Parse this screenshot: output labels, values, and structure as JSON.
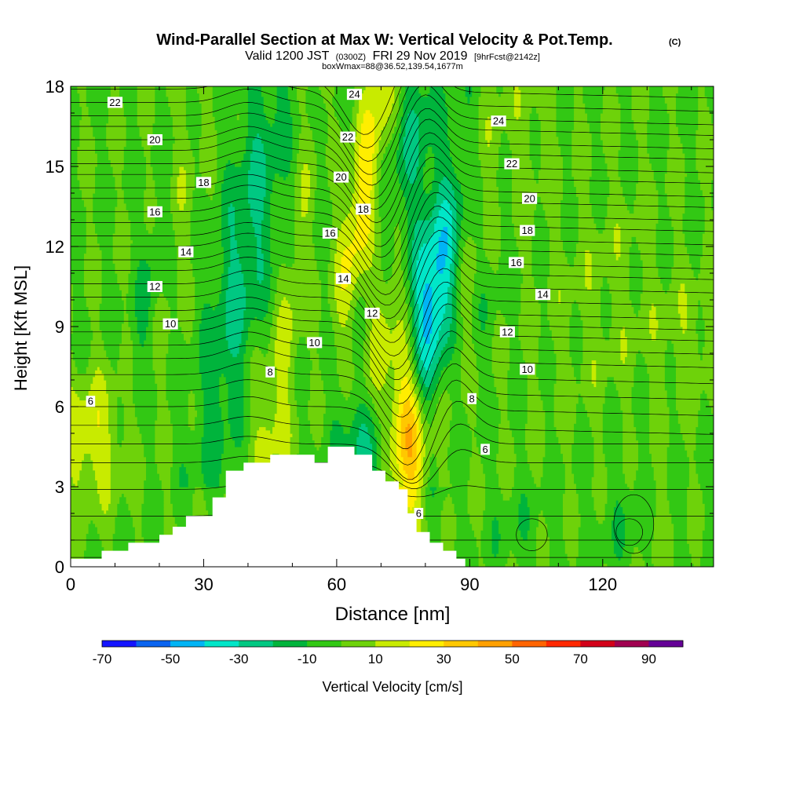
{
  "chart_data": {
    "type": "heatmap",
    "title": "Wind-Parallel Section at Max W: Vertical Velocity & Pot.Temp.",
    "title_mark": "(C)",
    "subtitle": {
      "prefix": "Valid 1200 JST",
      "utc": "(0300Z)",
      "date": "FRI 29 Nov 2019",
      "forecast": "[9hrFcst@2142z]"
    },
    "box_info": "boxWmax=88@36.52,139.54,1677m",
    "xlabel": "Distance [nm]",
    "ylabel": "Height [Kft MSL]",
    "xlim": [
      0,
      145
    ],
    "ylim": [
      0,
      18
    ],
    "x_ticks": [
      "0",
      "30",
      "60",
      "90",
      "120"
    ],
    "y_ticks": [
      "0",
      "3",
      "6",
      "9",
      "12",
      "15",
      "18"
    ],
    "x_tick_values": [
      0,
      30,
      60,
      90,
      120
    ],
    "y_tick_values": [
      0,
      3,
      6,
      9,
      12,
      15,
      18
    ],
    "colorbar": {
      "label": "Vertical Velocity [cm/s]",
      "tick_labels": [
        "-70",
        "-50",
        "-30",
        "-10",
        "10",
        "30",
        "50",
        "70",
        "90"
      ],
      "tick_values": [
        -70,
        -50,
        -30,
        -10,
        10,
        30,
        50,
        70,
        90
      ],
      "bins": [
        -70,
        -60,
        -50,
        -40,
        -30,
        -20,
        -10,
        0,
        10,
        20,
        30,
        40,
        50,
        60,
        70,
        80,
        90
      ],
      "colors": [
        "#1414ff",
        "#0a64f0",
        "#00b4f5",
        "#00e6c8",
        "#00c882",
        "#00b43c",
        "#32c814",
        "#6ed20a",
        "#c8eb00",
        "#ffee00",
        "#ffc800",
        "#ffa000",
        "#ff6400",
        "#ff2800",
        "#d20019",
        "#a00050",
        "#640096"
      ]
    },
    "terrain_profile": [
      [
        0,
        0.3
      ],
      [
        7,
        0.3
      ],
      [
        7,
        0.6
      ],
      [
        13,
        0.6
      ],
      [
        13,
        0.9
      ],
      [
        20,
        0.9
      ],
      [
        20,
        1.2
      ],
      [
        23,
        1.2
      ],
      [
        23,
        1.5
      ],
      [
        26,
        1.5
      ],
      [
        26,
        1.9
      ],
      [
        32,
        1.9
      ],
      [
        32,
        2.6
      ],
      [
        35,
        2.6
      ],
      [
        35,
        3.6
      ],
      [
        39,
        3.6
      ],
      [
        39,
        3.9
      ],
      [
        45,
        3.9
      ],
      [
        45,
        4.2
      ],
      [
        55,
        4.2
      ],
      [
        55,
        3.9
      ],
      [
        58,
        3.9
      ],
      [
        58,
        4.5
      ],
      [
        64,
        4.5
      ],
      [
        64,
        4.2
      ],
      [
        68,
        4.2
      ],
      [
        68,
        3.6
      ],
      [
        71,
        3.6
      ],
      [
        71,
        3.2
      ],
      [
        74,
        3.2
      ],
      [
        74,
        2.9
      ],
      [
        76,
        2.9
      ],
      [
        76,
        2.0
      ],
      [
        78,
        2.0
      ],
      [
        78,
        1.3
      ],
      [
        81,
        1.3
      ],
      [
        81,
        0.9
      ],
      [
        84,
        0.9
      ],
      [
        84,
        0.6
      ],
      [
        87,
        0.6
      ],
      [
        87,
        0.3
      ],
      [
        89,
        0.3
      ],
      [
        89,
        0
      ]
    ],
    "wind_features": [
      {
        "x": 4.5,
        "h": 4.8,
        "sx": 5,
        "sh": 1.6,
        "w": 20
      },
      {
        "x": 18,
        "h": 10.5,
        "sx": 2.2,
        "sh": 2.8,
        "w": -12
      },
      {
        "x": 24,
        "h": 13.5,
        "sx": 2.5,
        "sh": 4,
        "w": 7
      },
      {
        "x": 39,
        "h": 11.5,
        "sx": 4.5,
        "sh": 6,
        "w": -22
      },
      {
        "x": 44,
        "h": 5.5,
        "sx": 4,
        "sh": 2.2,
        "w": 8
      },
      {
        "x": 52,
        "h": 12,
        "sx": 2.3,
        "sh": 7,
        "w": 14
      },
      {
        "x": 56,
        "h": 15,
        "sx": 2,
        "sh": 3.5,
        "w": -10
      },
      {
        "x": 60,
        "h": 7,
        "sx": 3,
        "sh": 3,
        "w": -14
      },
      {
        "x": 65,
        "h": 13,
        "sx": 2.6,
        "sh": 5,
        "w": 28
      },
      {
        "x": 66,
        "h": 4,
        "sx": 3,
        "sh": 1.5,
        "w": -25
      },
      {
        "x": 72,
        "h": 11,
        "sx": 2.6,
        "sh": 4,
        "w": 18
      },
      {
        "x": 76,
        "h": 5.5,
        "sx": 3,
        "sh": 2.5,
        "w": 60
      },
      {
        "x": 81,
        "h": 9.5,
        "sx": 4,
        "sh": 3.6,
        "w": -50
      },
      {
        "x": 76,
        "h": 15,
        "sx": 3,
        "sh": 3,
        "w": -28
      },
      {
        "x": 88,
        "h": 10,
        "sx": 3,
        "sh": 3.5,
        "w": 12
      },
      {
        "x": 95,
        "h": 12,
        "sx": 3,
        "sh": 4,
        "w": -6
      },
      {
        "x": 100,
        "h": 16,
        "sx": 6,
        "sh": 2.5,
        "w": 8
      },
      {
        "x": 120,
        "h": 10,
        "sx": 9,
        "sh": 3,
        "w": 6
      },
      {
        "x": 126,
        "h": 1.8,
        "sx": 6,
        "sh": 1.5,
        "w": -6
      },
      {
        "x": 101,
        "h": 1.2,
        "sx": 5,
        "sh": 1.2,
        "w": -5
      },
      {
        "x": 132,
        "h": 1.5,
        "sx": 2,
        "sh": 1.5,
        "w": 8
      },
      {
        "x": 140,
        "h": 8.5,
        "sx": 6,
        "sh": 1.5,
        "w": 8
      }
    ],
    "theta_labels": [
      {
        "text": "22",
        "x": 10,
        "h": 17.4
      },
      {
        "text": "20",
        "x": 19,
        "h": 16.0
      },
      {
        "text": "18",
        "x": 30,
        "h": 14.4
      },
      {
        "text": "16",
        "x": 19,
        "h": 13.3
      },
      {
        "text": "14",
        "x": 26,
        "h": 11.8
      },
      {
        "text": "12",
        "x": 19,
        "h": 10.5
      },
      {
        "text": "10",
        "x": 22.5,
        "h": 9.1
      },
      {
        "text": "8",
        "x": 45,
        "h": 7.3
      },
      {
        "text": "6",
        "x": 4.5,
        "h": 6.2
      },
      {
        "text": "10",
        "x": 55,
        "h": 8.4
      },
      {
        "text": "12",
        "x": 68,
        "h": 9.5
      },
      {
        "text": "14",
        "x": 61.5,
        "h": 10.8
      },
      {
        "text": "16",
        "x": 58.5,
        "h": 12.5
      },
      {
        "text": "18",
        "x": 66,
        "h": 13.4
      },
      {
        "text": "20",
        "x": 61,
        "h": 14.6
      },
      {
        "text": "22",
        "x": 62.5,
        "h": 16.1
      },
      {
        "text": "24",
        "x": 64,
        "h": 17.7
      },
      {
        "text": "24",
        "x": 96.5,
        "h": 16.7
      },
      {
        "text": "22",
        "x": 99.5,
        "h": 15.1
      },
      {
        "text": "20",
        "x": 103.5,
        "h": 13.8
      },
      {
        "text": "18",
        "x": 103,
        "h": 12.6
      },
      {
        "text": "16",
        "x": 100.5,
        "h": 11.4
      },
      {
        "text": "14",
        "x": 106.5,
        "h": 10.2
      },
      {
        "text": "12",
        "x": 98.5,
        "h": 8.8
      },
      {
        "text": "10",
        "x": 103,
        "h": 7.4
      },
      {
        "text": "8",
        "x": 90.5,
        "h": 6.3
      },
      {
        "text": "6",
        "x": 93.5,
        "h": 4.4
      },
      {
        "text": "6",
        "x": 78.5,
        "h": 2.0
      }
    ]
  }
}
